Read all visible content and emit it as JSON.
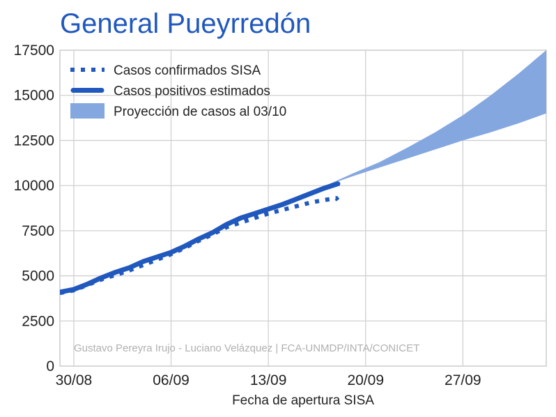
{
  "chart_data": {
    "type": "line",
    "title": "General Pueyrredón",
    "xlabel": "Fecha de apertura SISA",
    "ylabel": "",
    "x_ticks": [
      {
        "day": 0,
        "label": "30/08"
      },
      {
        "day": 7,
        "label": "06/09"
      },
      {
        "day": 14,
        "label": "13/09"
      },
      {
        "day": 21,
        "label": "20/09"
      },
      {
        "day": 28,
        "label": "27/09"
      }
    ],
    "xlim": [
      -1,
      34
    ],
    "ylim": [
      0,
      17500
    ],
    "y_ticks": [
      0,
      2500,
      5000,
      7500,
      10000,
      12500,
      15000,
      17500
    ],
    "y_tick_labels": [
      "0",
      "2500",
      "5000",
      "7500",
      "10000",
      "12500",
      "15000",
      "17500"
    ],
    "grid": true,
    "legend_position": "top-left",
    "credit": "Gustavo Pereyra Irujo - Luciano Velázquez | FCA-UNMDP/INTA/CONICET",
    "series": [
      {
        "name": "Casos confirmados SISA",
        "style": "dotted",
        "color": "#2058bd",
        "points": [
          [
            -1,
            4050
          ],
          [
            0,
            4200
          ],
          [
            1,
            4500
          ],
          [
            2,
            4800
          ],
          [
            3,
            5050
          ],
          [
            4,
            5300
          ],
          [
            5,
            5600
          ],
          [
            6,
            5900
          ],
          [
            7,
            6200
          ],
          [
            8,
            6550
          ],
          [
            9,
            6950
          ],
          [
            10,
            7300
          ],
          [
            11,
            7700
          ],
          [
            12,
            7950
          ],
          [
            13,
            8200
          ],
          [
            14,
            8450
          ],
          [
            15,
            8650
          ],
          [
            16,
            8850
          ],
          [
            17,
            9050
          ],
          [
            18,
            9200
          ],
          [
            18.9,
            9300
          ],
          [
            19,
            9200
          ]
        ]
      },
      {
        "name": "Casos positivos estimados",
        "style": "solid",
        "color": "#2058bd",
        "points": [
          [
            -1,
            4100
          ],
          [
            0,
            4250
          ],
          [
            1,
            4550
          ],
          [
            2,
            4900
          ],
          [
            3,
            5200
          ],
          [
            4,
            5450
          ],
          [
            5,
            5800
          ],
          [
            6,
            6050
          ],
          [
            7,
            6300
          ],
          [
            8,
            6650
          ],
          [
            9,
            7050
          ],
          [
            10,
            7400
          ],
          [
            11,
            7850
          ],
          [
            12,
            8200
          ],
          [
            13,
            8450
          ],
          [
            14,
            8700
          ],
          [
            15,
            8950
          ],
          [
            16,
            9250
          ],
          [
            17,
            9550
          ],
          [
            18,
            9850
          ],
          [
            19,
            10100
          ]
        ]
      },
      {
        "name": "Proyección de casos al 03/10",
        "style": "band",
        "color": "#84a7e0",
        "upper": [
          [
            18,
            9950
          ],
          [
            20,
            10650
          ],
          [
            22,
            11300
          ],
          [
            24,
            12100
          ],
          [
            26,
            12950
          ],
          [
            28,
            13900
          ],
          [
            30,
            15000
          ],
          [
            32,
            16200
          ],
          [
            34,
            17500
          ]
        ],
        "lower": [
          [
            18,
            9950
          ],
          [
            20,
            10500
          ],
          [
            22,
            11000
          ],
          [
            24,
            11500
          ],
          [
            26,
            12000
          ],
          [
            28,
            12500
          ],
          [
            30,
            12950
          ],
          [
            32,
            13450
          ],
          [
            34,
            14000
          ]
        ]
      }
    ]
  }
}
